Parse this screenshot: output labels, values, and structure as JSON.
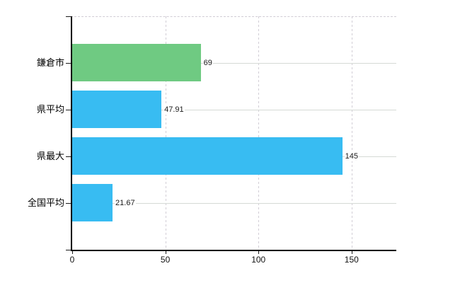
{
  "chart_data": {
    "type": "bar",
    "orientation": "horizontal",
    "title": "",
    "xlabel": "",
    "ylabel": "",
    "categories": [
      "鎌倉市",
      "県平均",
      "県最大",
      "全国平均"
    ],
    "values": [
      69,
      47.91,
      145,
      21.67
    ],
    "value_labels": [
      "69",
      "47.91",
      "145",
      "21.67"
    ],
    "bar_colors": [
      "#6fca82",
      "#38bcf2",
      "#38bcf2",
      "#38bcf2"
    ],
    "x_ticks": [
      0,
      50,
      100,
      150
    ],
    "x_tick_labels": [
      "0",
      "50",
      "100",
      "150"
    ],
    "xlim": [
      0,
      174
    ],
    "grid": {
      "vertical": "dashed",
      "horizontal": "solid-at-category-centers",
      "top_border": "dashed"
    },
    "legend": "none",
    "colors": {
      "axis": "#000000",
      "vgrid": "#d2ced6",
      "hgrid": "#d5dad5",
      "green_bar": "#6fca82",
      "blue_bar": "#38bcf2",
      "text": "#000000",
      "background": "#ffffff"
    }
  }
}
